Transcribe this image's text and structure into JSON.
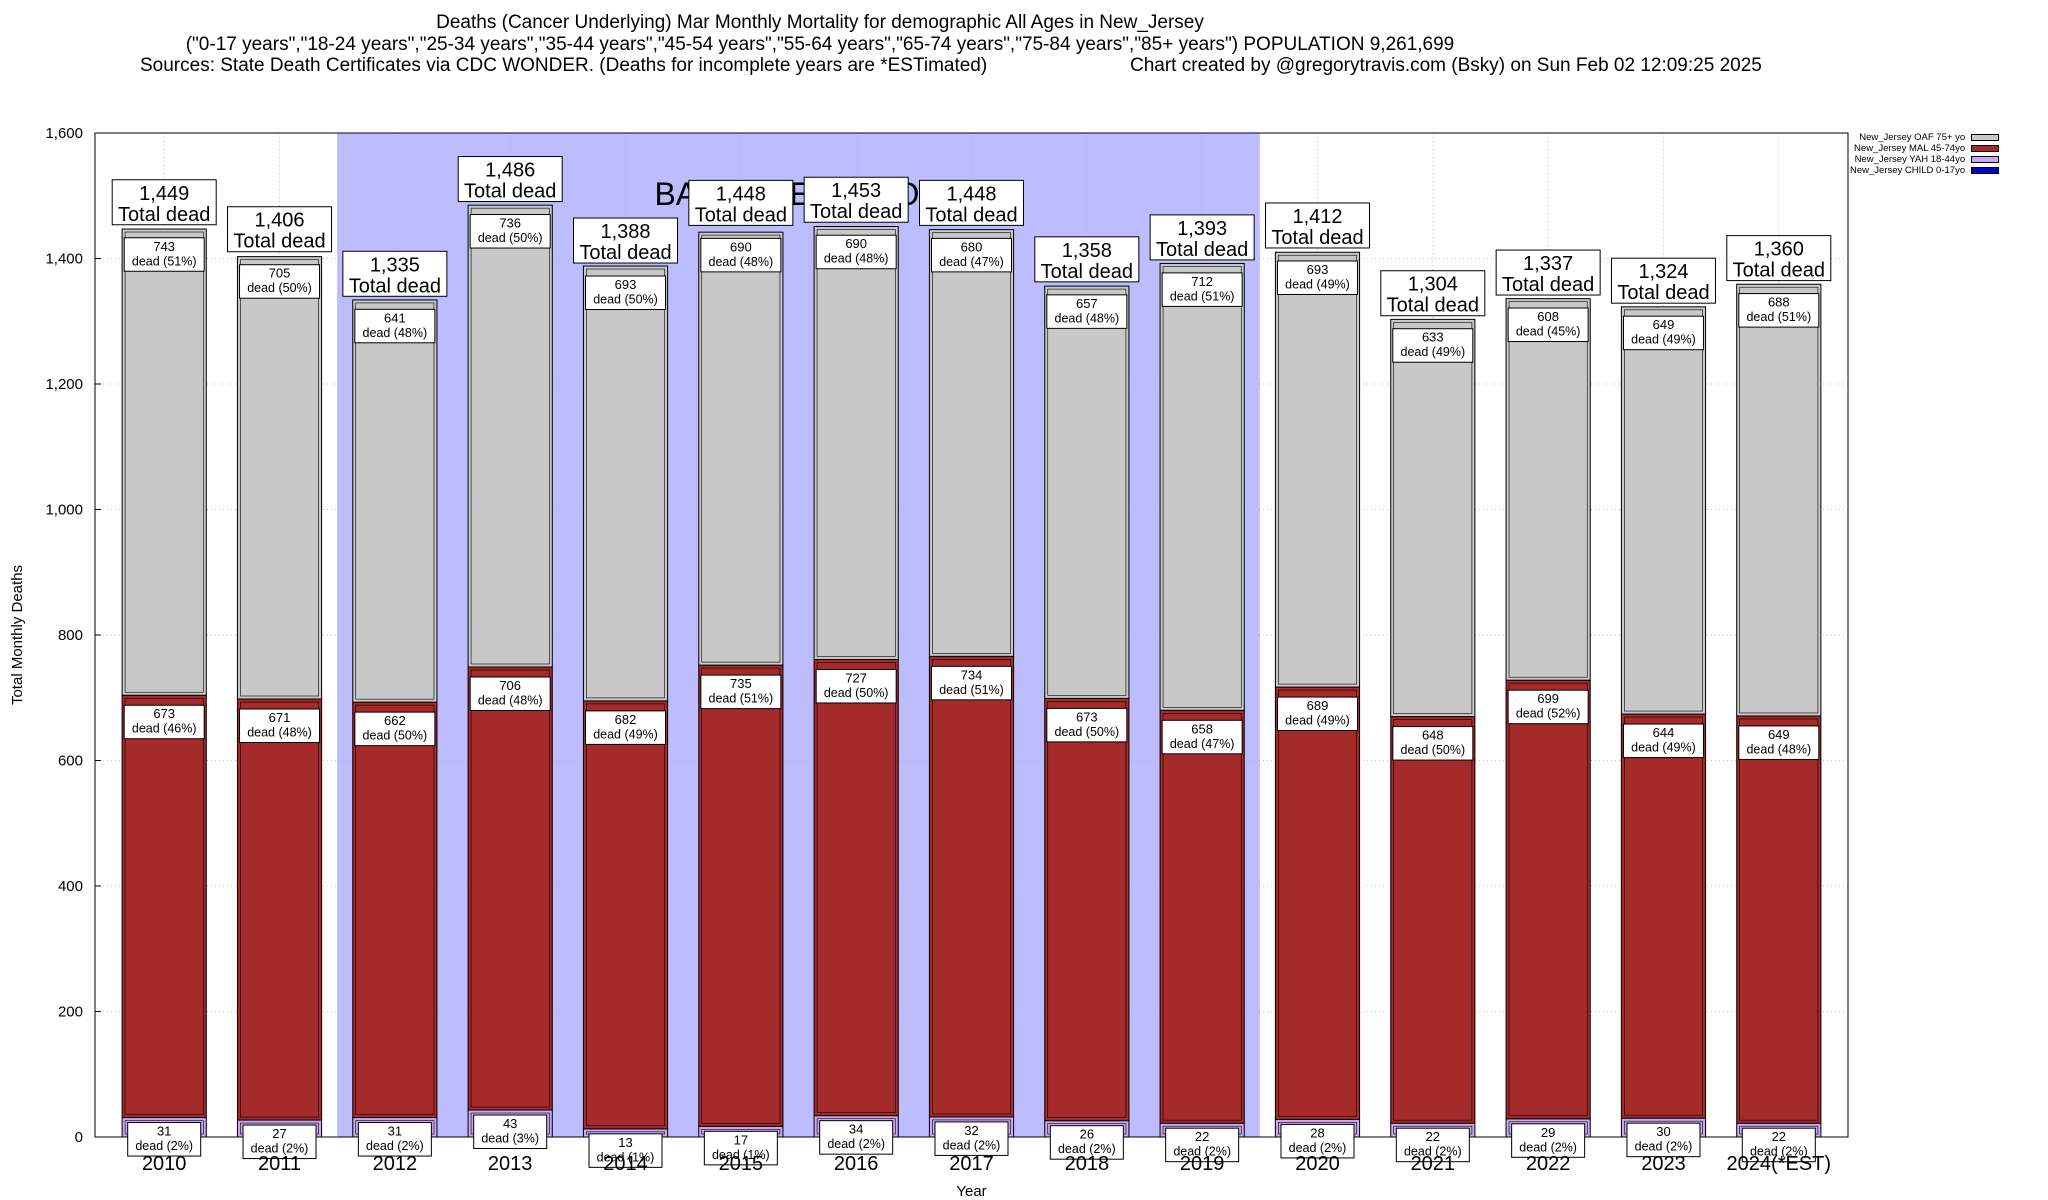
{
  "header": {
    "title": "Deaths (Cancer Underlying) Mar Monthly Mortality for demographic All Ages in New_Jersey",
    "groups": "(\"0-17 years\",\"18-24 years\",\"25-34 years\",\"35-44 years\",\"45-54 years\",\"55-64 years\",\"65-74 years\",\"75-84 years\",\"85+ years\") POPULATION 9,261,699",
    "sources": "Sources: State Death Certificates via CDC WONDER. (Deaths for incomplete years are *ESTimated)",
    "credit": "Chart created by @gregorytravis.com (Bsky) on Sun Feb 02 12:09:25 2025"
  },
  "chart_data": {
    "type": "bar",
    "stacked": true,
    "xlabel": "Year",
    "ylabel": "Total Monthly Deaths",
    "ylim": [
      0,
      1600
    ],
    "yticks": [
      "0",
      "200",
      "400",
      "600",
      "800",
      "1,000",
      "1,200",
      "1,400",
      "1,600"
    ],
    "grid": true,
    "legend_position": "top-right",
    "baseline_label": "BASELINE PERIOD",
    "baseline_range": [
      "2012",
      "2019"
    ],
    "total_label": "Total dead",
    "segment_word": "dead",
    "categories": [
      "2010",
      "2011",
      "2012",
      "2013",
      "2014",
      "2015",
      "2016",
      "2017",
      "2018",
      "2019",
      "2020",
      "2021",
      "2022",
      "2023",
      "2024(*EST)"
    ],
    "totals": [
      1449,
      1406,
      1335,
      1486,
      1388,
      1448,
      1453,
      1448,
      1358,
      1393,
      1412,
      1304,
      1337,
      1324,
      1360
    ],
    "total_labels": [
      "1,449",
      "1,406",
      "1,335",
      "1,486",
      "1,388",
      "1,448",
      "1,453",
      "1,448",
      "1,358",
      "1,393",
      "1,412",
      "1,304",
      "1,337",
      "1,324",
      "1,360"
    ],
    "series": [
      {
        "name": "New_Jersey CHILD 0-17yo",
        "color": "#0000cc",
        "values": [
          0,
          0,
          0,
          0,
          0,
          0,
          0,
          0,
          0,
          0,
          0,
          0,
          0,
          0,
          0
        ]
      },
      {
        "name": "New_Jersey YAH 18-44yo",
        "color": "#c9a8f0",
        "values": [
          31,
          27,
          31,
          43,
          13,
          17,
          34,
          32,
          26,
          22,
          28,
          22,
          29,
          30,
          22
        ],
        "percents": [
          "2%",
          "2%",
          "2%",
          "3%",
          "1%",
          "1%",
          "2%",
          "2%",
          "2%",
          "2%",
          "2%",
          "2%",
          "2%",
          "2%",
          "2%"
        ]
      },
      {
        "name": "New_Jersey MAL 45-74yo",
        "color": "#a52a2a",
        "values": [
          673,
          671,
          662,
          706,
          682,
          735,
          727,
          734,
          673,
          658,
          689,
          648,
          699,
          644,
          649
        ],
        "percents": [
          "46%",
          "48%",
          "50%",
          "48%",
          "49%",
          "51%",
          "50%",
          "51%",
          "50%",
          "47%",
          "49%",
          "50%",
          "52%",
          "49%",
          "48%"
        ]
      },
      {
        "name": "New_Jersey OAF 75+ yo",
        "color": "#c8c8c8",
        "values": [
          743,
          705,
          641,
          736,
          693,
          690,
          690,
          680,
          657,
          712,
          693,
          633,
          608,
          649,
          688
        ],
        "percents": [
          "51%",
          "50%",
          "48%",
          "50%",
          "50%",
          "48%",
          "48%",
          "47%",
          "48%",
          "51%",
          "49%",
          "49%",
          "45%",
          "49%",
          "51%"
        ]
      }
    ]
  }
}
